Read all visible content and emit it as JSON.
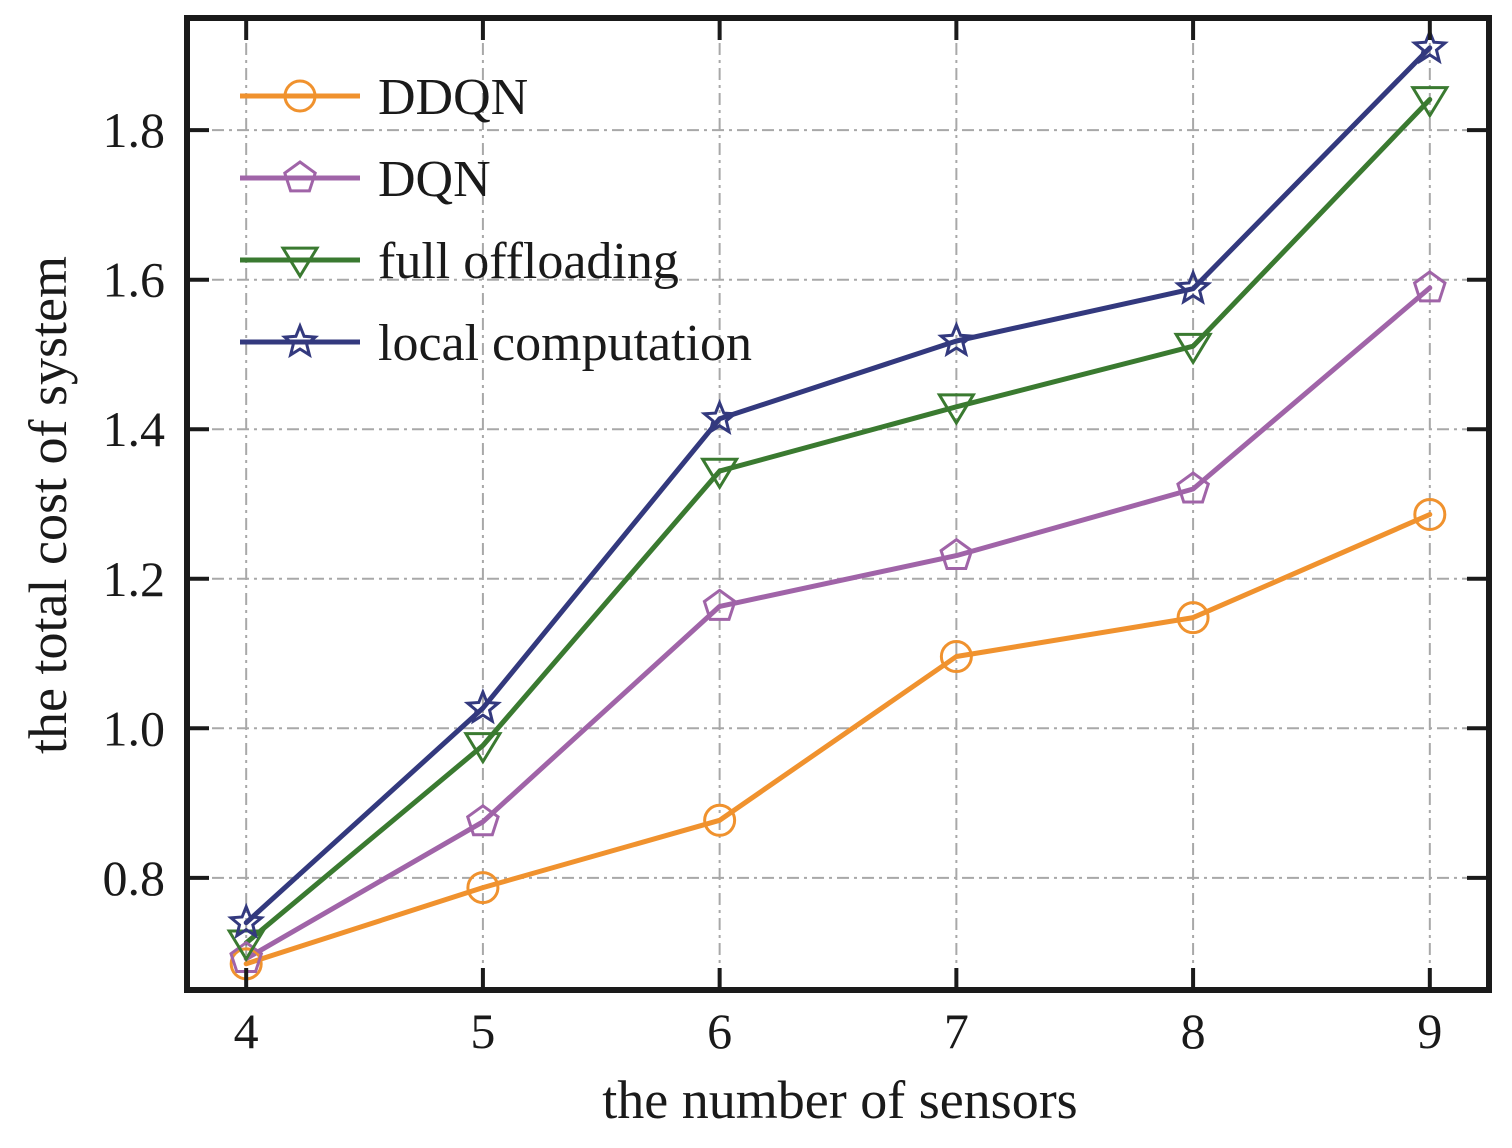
{
  "chart_data": {
    "type": "line",
    "title": "",
    "xlabel": "the number of sensors",
    "ylabel": "the  total cost of system",
    "x": [
      4,
      5,
      6,
      7,
      8,
      9
    ],
    "x_ticks": [
      "4",
      "5",
      "6",
      "7",
      "8",
      "9"
    ],
    "y_ticks": [
      "0.8",
      "1.0",
      "1.2",
      "1.4",
      "1.6",
      "1.8"
    ],
    "y_tick_values": [
      0.8,
      1.0,
      1.2,
      1.4,
      1.6,
      1.8
    ],
    "xlim": [
      3.75,
      9.25
    ],
    "ylim": [
      0.65,
      1.95
    ],
    "grid": true,
    "legend_position": "top-left",
    "series": [
      {
        "name": "DDQN",
        "color": "#f0922e",
        "marker": "circle",
        "values": [
          0.685,
          0.787,
          0.877,
          1.096,
          1.148,
          1.286
        ]
      },
      {
        "name": "DQN",
        "color": "#a064a8",
        "marker": "pentagon",
        "values": [
          0.692,
          0.875,
          1.163,
          1.231,
          1.32,
          1.589
        ]
      },
      {
        "name": "full offloading",
        "color": "#3a7a30",
        "marker": "triangle-down",
        "values": [
          0.713,
          0.977,
          1.344,
          1.43,
          1.511,
          1.841
        ]
      },
      {
        "name": "local computation",
        "color": "#33397e",
        "marker": "star",
        "values": [
          0.74,
          1.027,
          1.414,
          1.518,
          1.588,
          1.91
        ]
      }
    ]
  }
}
